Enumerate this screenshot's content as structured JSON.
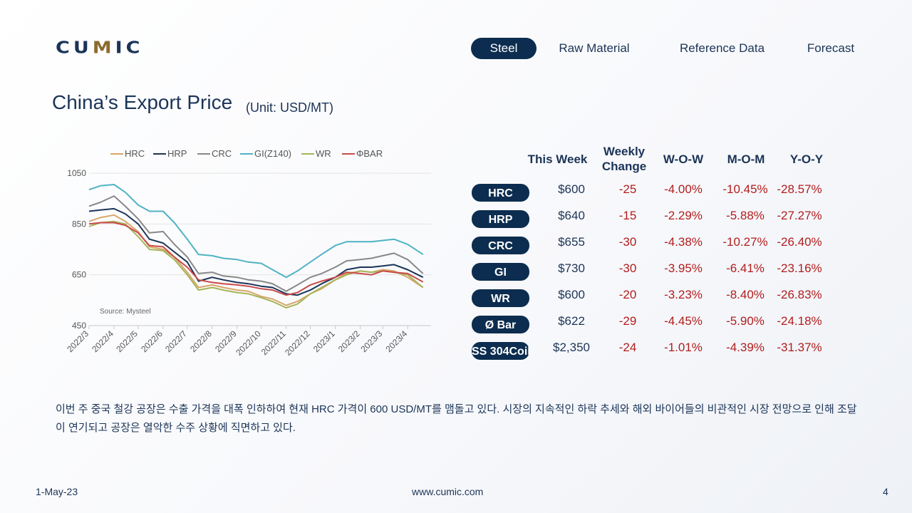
{
  "logo": "CUMIC",
  "nav": [
    {
      "label": "Steel",
      "active": true
    },
    {
      "label": "Raw Material",
      "active": false
    },
    {
      "label": "Reference Data",
      "active": false
    },
    {
      "label": "Forecast",
      "active": false
    }
  ],
  "title": "China’s Export Price",
  "unit": "(Unit: USD/MT)",
  "table": {
    "headers": {
      "this_week": "This Week",
      "weekly_change": "Weekly Change",
      "wow": "W-O-W",
      "mom": "M-O-M",
      "yoy": "Y-O-Y"
    },
    "rows": [
      {
        "product": "HRC",
        "price": "$600",
        "change": "-25",
        "wow": "-4.00%",
        "mom": "-10.45%",
        "yoy": "-28.57%"
      },
      {
        "product": "HRP",
        "price": "$640",
        "change": "-15",
        "wow": "-2.29%",
        "mom": "-5.88%",
        "yoy": "-27.27%"
      },
      {
        "product": "CRC",
        "price": "$655",
        "change": "-30",
        "wow": "-4.38%",
        "mom": "-10.27%",
        "yoy": "-26.40%"
      },
      {
        "product": "GI",
        "price": "$730",
        "change": "-30",
        "wow": "-3.95%",
        "mom": "-6.41%",
        "yoy": "-23.16%"
      },
      {
        "product": "WR",
        "price": "$600",
        "change": "-20",
        "wow": "-3.23%",
        "mom": "-8.40%",
        "yoy": "-26.83%"
      },
      {
        "product": "Ø Bar",
        "price": "$622",
        "change": "-29",
        "wow": "-4.45%",
        "mom": "-5.90%",
        "yoy": "-24.18%"
      },
      {
        "product": "SS 304Coil",
        "price": "$2,350",
        "change": "-24",
        "wow": "-1.01%",
        "mom": "-4.39%",
        "yoy": "-31.37%"
      }
    ]
  },
  "note": "이번 주 중국 철강 공장은 수출 가격을 대폭 인하하여 현재 HRC 가격이 600 USD/MT를 맴돌고 있다. 시장의 지속적인 하락 추세와 해외 바이어들의 비관적인 시장 전망으로 인해 조달이 연기되고 공장은 열악한 수주 상황에 직면하고 있다.",
  "footer": {
    "date": "1-May-23",
    "url": "www.cumic.com",
    "page": "4"
  },
  "colors": {
    "navy": "#0c2d4f",
    "text": "#1b3457",
    "negative": "#b21d1d"
  },
  "chart_data": {
    "type": "line",
    "source": "Source: Mysteel",
    "ylim": [
      450,
      1050
    ],
    "yticks": [
      450,
      650,
      850,
      1050
    ],
    "xlim": [
      "2022-03-01",
      "2023-04-30"
    ],
    "xticks": [
      "2022-03-01",
      "2022-04-01",
      "2022-05-01",
      "2022-06-01",
      "2022-07-01",
      "2022-08-01",
      "2022-09-01",
      "2022-10-01",
      "2022-11-01",
      "2022-12-01",
      "2023-01-01",
      "2023-02-01",
      "2023-03-01",
      "2023-04-01"
    ],
    "xtick_labels": [
      "2022/3",
      "2022/4",
      "2022/5",
      "2022/6",
      "2022/7",
      "2022/8",
      "2022/9",
      "2022/10",
      "2022/11",
      "2022/12",
      "2023/1",
      "2023/2",
      "2023/3",
      "2023/4"
    ],
    "legend_position": "top",
    "x": [
      "2022-03-01",
      "2022-03-15",
      "2022-04-01",
      "2022-04-15",
      "2022-05-01",
      "2022-05-15",
      "2022-06-01",
      "2022-06-15",
      "2022-07-01",
      "2022-07-15",
      "2022-08-01",
      "2022-08-15",
      "2022-09-01",
      "2022-09-15",
      "2022-10-01",
      "2022-10-15",
      "2022-11-01",
      "2022-11-15",
      "2022-12-01",
      "2022-12-15",
      "2023-01-01",
      "2023-01-15",
      "2023-02-01",
      "2023-02-15",
      "2023-03-01",
      "2023-03-15",
      "2023-04-01",
      "2023-04-20"
    ],
    "series": [
      {
        "name": "HRC",
        "color": "#d9a66a",
        "values": [
          860,
          875,
          885,
          860,
          820,
          760,
          750,
          720,
          660,
          600,
          610,
          600,
          590,
          585,
          565,
          555,
          530,
          545,
          575,
          595,
          630,
          655,
          665,
          660,
          670,
          665,
          640,
          600
        ]
      },
      {
        "name": "HRP",
        "color": "#1b3457",
        "values": [
          900,
          905,
          910,
          890,
          850,
          790,
          775,
          740,
          700,
          625,
          640,
          630,
          620,
          615,
          605,
          600,
          575,
          570,
          590,
          615,
          640,
          670,
          680,
          680,
          685,
          690,
          670,
          640
        ]
      },
      {
        "name": "CRC",
        "color": "#888888",
        "values": [
          920,
          935,
          960,
          920,
          870,
          815,
          820,
          770,
          720,
          655,
          660,
          645,
          640,
          630,
          625,
          615,
          585,
          610,
          640,
          655,
          680,
          705,
          710,
          715,
          725,
          735,
          710,
          655
        ]
      },
      {
        "name": "GI(Z140)",
        "color": "#4fb3c4",
        "values": [
          985,
          1000,
          1005,
          975,
          925,
          900,
          900,
          855,
          790,
          730,
          725,
          715,
          710,
          700,
          695,
          670,
          640,
          665,
          700,
          730,
          765,
          780,
          780,
          780,
          785,
          790,
          770,
          730
        ]
      },
      {
        "name": "WR",
        "color": "#a5b55a",
        "values": [
          840,
          855,
          860,
          850,
          800,
          750,
          745,
          710,
          650,
          590,
          600,
          590,
          580,
          575,
          560,
          545,
          520,
          535,
          575,
          600,
          630,
          650,
          665,
          660,
          665,
          660,
          650,
          600
        ]
      },
      {
        "name": "ΦBAR",
        "color": "#c94b4b",
        "values": [
          850,
          855,
          855,
          845,
          815,
          765,
          760,
          720,
          680,
          630,
          620,
          615,
          610,
          605,
          595,
          590,
          570,
          580,
          610,
          625,
          640,
          660,
          655,
          650,
          665,
          660,
          655,
          622
        ]
      }
    ]
  }
}
